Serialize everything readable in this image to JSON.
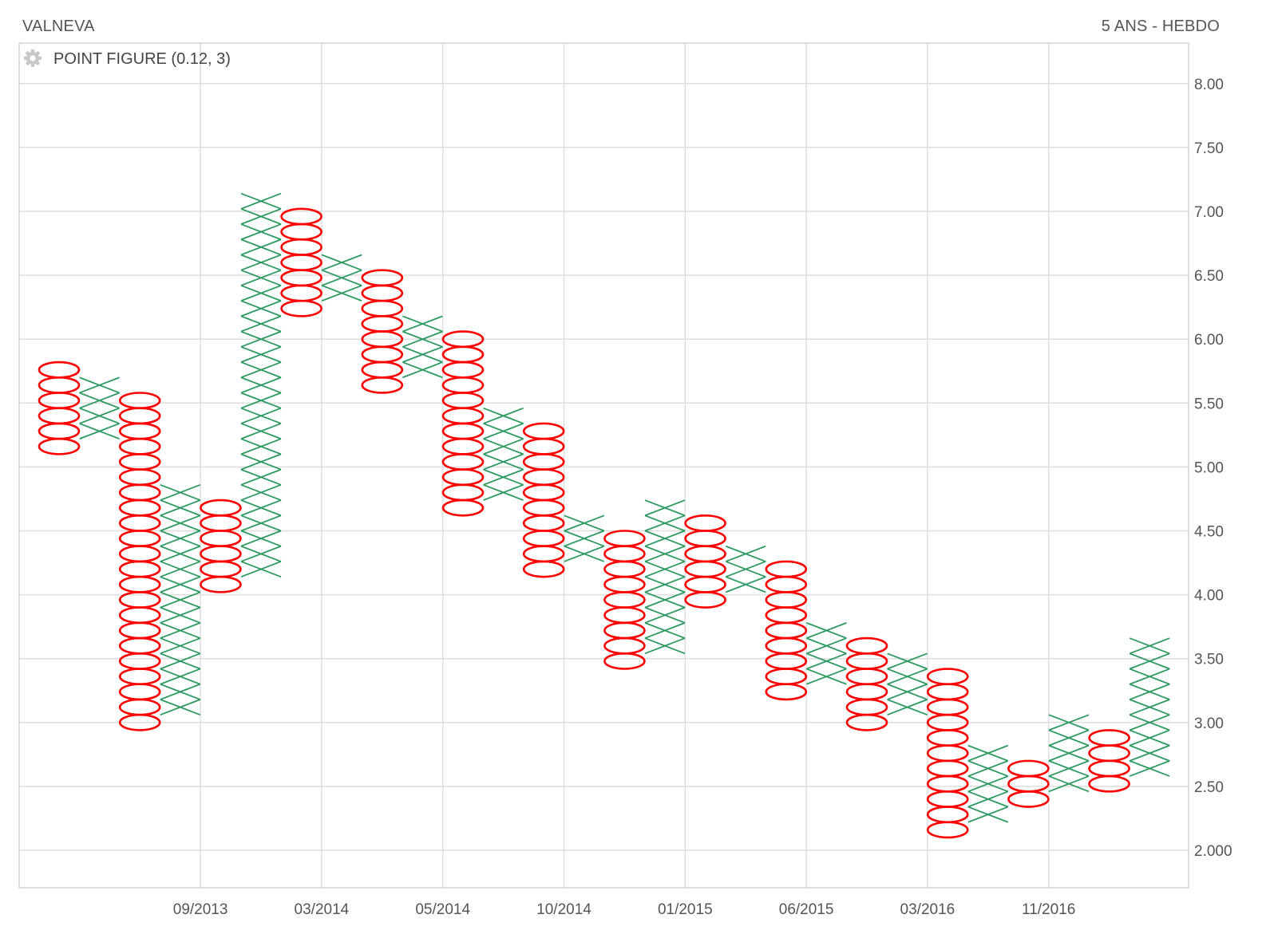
{
  "header": {
    "title": "VALNEVA",
    "period": "5 ANS - HEBDO"
  },
  "legend": {
    "label": "POINT FIGURE (0.12, 3)",
    "icon": "gear-icon"
  },
  "colors": {
    "x_column": "#2e9a63",
    "o_column": "#ff0000",
    "grid": "#dedede",
    "text": "#555555"
  },
  "chart_data": {
    "type": "point-and-figure",
    "title": "VALNEVA",
    "box_size": 0.12,
    "reversal": 3,
    "y_axis": {
      "position": "right",
      "ylim": [
        1.75,
        8.3
      ],
      "ticks": [
        8.0,
        7.5,
        7.0,
        6.5,
        6.0,
        5.5,
        5.0,
        4.5,
        4.0,
        3.5,
        3.0,
        2.5,
        2.0
      ],
      "tick_labels": [
        "8.00",
        "7.50",
        "7.00",
        "6.50",
        "6.00",
        "5.50",
        "5.00",
        "4.50",
        "4.00",
        "3.50",
        "3.00",
        "2.50",
        "2.000"
      ]
    },
    "x_axis": {
      "labels": [
        {
          "label": "09/2013",
          "column": 3.5
        },
        {
          "label": "03/2014",
          "column": 6.5
        },
        {
          "label": "05/2014",
          "column": 9.5
        },
        {
          "label": "10/2014",
          "column": 12.5
        },
        {
          "label": "01/2015",
          "column": 15.5
        },
        {
          "label": "06/2015",
          "column": 18.5
        },
        {
          "label": "03/2016",
          "column": 21.5
        },
        {
          "label": "11/2016",
          "column": 24.5
        }
      ]
    },
    "grid": true,
    "columns": [
      {
        "type": "O",
        "high": 5.76,
        "low": 5.16
      },
      {
        "type": "X",
        "high": 5.64,
        "low": 5.28
      },
      {
        "type": "O",
        "high": 5.52,
        "low": 3.0
      },
      {
        "type": "X",
        "high": 4.8,
        "low": 3.12
      },
      {
        "type": "O",
        "high": 4.68,
        "low": 4.08
      },
      {
        "type": "X",
        "high": 7.08,
        "low": 4.2
      },
      {
        "type": "O",
        "high": 6.96,
        "low": 6.24
      },
      {
        "type": "X",
        "high": 6.6,
        "low": 6.36
      },
      {
        "type": "O",
        "high": 6.48,
        "low": 5.64
      },
      {
        "type": "X",
        "high": 6.12,
        "low": 5.76
      },
      {
        "type": "O",
        "high": 6.0,
        "low": 4.68
      },
      {
        "type": "X",
        "high": 5.4,
        "low": 4.8
      },
      {
        "type": "O",
        "high": 5.28,
        "low": 4.2
      },
      {
        "type": "X",
        "high": 4.56,
        "low": 4.32
      },
      {
        "type": "O",
        "high": 4.44,
        "low": 3.48
      },
      {
        "type": "X",
        "high": 4.68,
        "low": 3.6
      },
      {
        "type": "O",
        "high": 4.56,
        "low": 3.96
      },
      {
        "type": "X",
        "high": 4.32,
        "low": 4.08
      },
      {
        "type": "O",
        "high": 4.2,
        "low": 3.24
      },
      {
        "type": "X",
        "high": 3.72,
        "low": 3.36
      },
      {
        "type": "O",
        "high": 3.6,
        "low": 3.0
      },
      {
        "type": "X",
        "high": 3.48,
        "low": 3.12
      },
      {
        "type": "O",
        "high": 3.36,
        "low": 2.16
      },
      {
        "type": "X",
        "high": 2.76,
        "low": 2.28
      },
      {
        "type": "O",
        "high": 2.64,
        "low": 2.4
      },
      {
        "type": "X",
        "high": 3.0,
        "low": 2.52
      },
      {
        "type": "O",
        "high": 2.88,
        "low": 2.52
      },
      {
        "type": "X",
        "high": 3.6,
        "low": 2.64
      }
    ]
  }
}
